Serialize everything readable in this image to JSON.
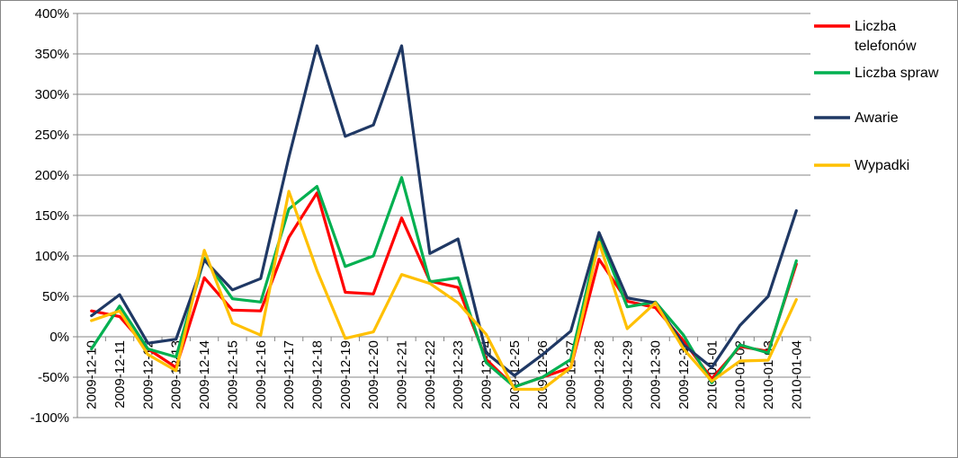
{
  "chart_data": {
    "type": "line",
    "title": "",
    "xlabel": "",
    "ylabel": "",
    "ylim": [
      -1.0,
      4.0
    ],
    "y_ticks": [
      4.0,
      3.5,
      3.0,
      2.5,
      2.0,
      1.5,
      1.0,
      0.5,
      0.0,
      -0.5,
      -1.0
    ],
    "y_tick_labels": [
      "400%",
      "350%",
      "300%",
      "250%",
      "200%",
      "150%",
      "100%",
      "50%",
      "0%",
      "-50%",
      "-100%"
    ],
    "grid": "horizontal",
    "legend_position": "right",
    "categories": [
      "2009-12-10",
      "2009-12-11",
      "2009-12-12",
      "2009-12-13",
      "2009-12-14",
      "2009-12-15",
      "2009-12-16",
      "2009-12-17",
      "2009-12-18",
      "2009-12-19",
      "2009-12-20",
      "2009-12-21",
      "2009-12-22",
      "2009-12-23",
      "2009-12-24",
      "2009-12-25",
      "2009-12-26",
      "2009-12-27",
      "2009-12-28",
      "2009-12-29",
      "2009-12-30",
      "2009-12-31",
      "2010-01-01",
      "2010-01-02",
      "2010-01-03",
      "2010-01-04"
    ],
    "series": [
      {
        "name": "Liczba telefonów",
        "name_lines": [
          "Liczba",
          "telefonów"
        ],
        "color": "#ff0000",
        "values": [
          0.32,
          0.25,
          -0.15,
          -0.38,
          0.73,
          0.33,
          0.32,
          1.23,
          1.78,
          0.55,
          0.53,
          1.47,
          0.69,
          0.61,
          -0.28,
          -0.62,
          -0.5,
          -0.38,
          0.96,
          0.44,
          0.36,
          -0.05,
          -0.52,
          -0.12,
          -0.18,
          0.9
        ]
      },
      {
        "name": "Liczba spraw",
        "name_lines": [
          "Liczba spraw"
        ],
        "color": "#00b050",
        "values": [
          -0.15,
          0.38,
          -0.15,
          -0.25,
          0.97,
          0.47,
          0.43,
          1.58,
          1.86,
          0.87,
          1.0,
          1.97,
          0.68,
          0.73,
          -0.32,
          -0.62,
          -0.5,
          -0.28,
          1.25,
          0.37,
          0.43,
          0.02,
          -0.57,
          -0.1,
          -0.2,
          0.94
        ]
      },
      {
        "name": "Awarie",
        "name_lines": [
          "Awarie"
        ],
        "color": "#1f3864",
        "values": [
          0.26,
          0.52,
          -0.08,
          -0.03,
          0.95,
          0.58,
          0.72,
          2.22,
          3.6,
          2.48,
          2.62,
          3.6,
          1.03,
          1.21,
          -0.2,
          -0.48,
          -0.22,
          0.07,
          1.29,
          0.48,
          0.42,
          -0.1,
          -0.38,
          0.14,
          0.5,
          1.56
        ]
      },
      {
        "name": "Wypadki",
        "name_lines": [
          "Wypadki"
        ],
        "color": "#ffc000",
        "values": [
          0.2,
          0.32,
          -0.22,
          -0.42,
          1.07,
          0.17,
          0.02,
          1.8,
          0.82,
          -0.02,
          0.06,
          0.77,
          0.66,
          0.42,
          0.03,
          -0.65,
          -0.65,
          -0.38,
          1.17,
          0.1,
          0.42,
          -0.15,
          -0.55,
          -0.3,
          -0.29,
          0.46
        ]
      }
    ]
  }
}
